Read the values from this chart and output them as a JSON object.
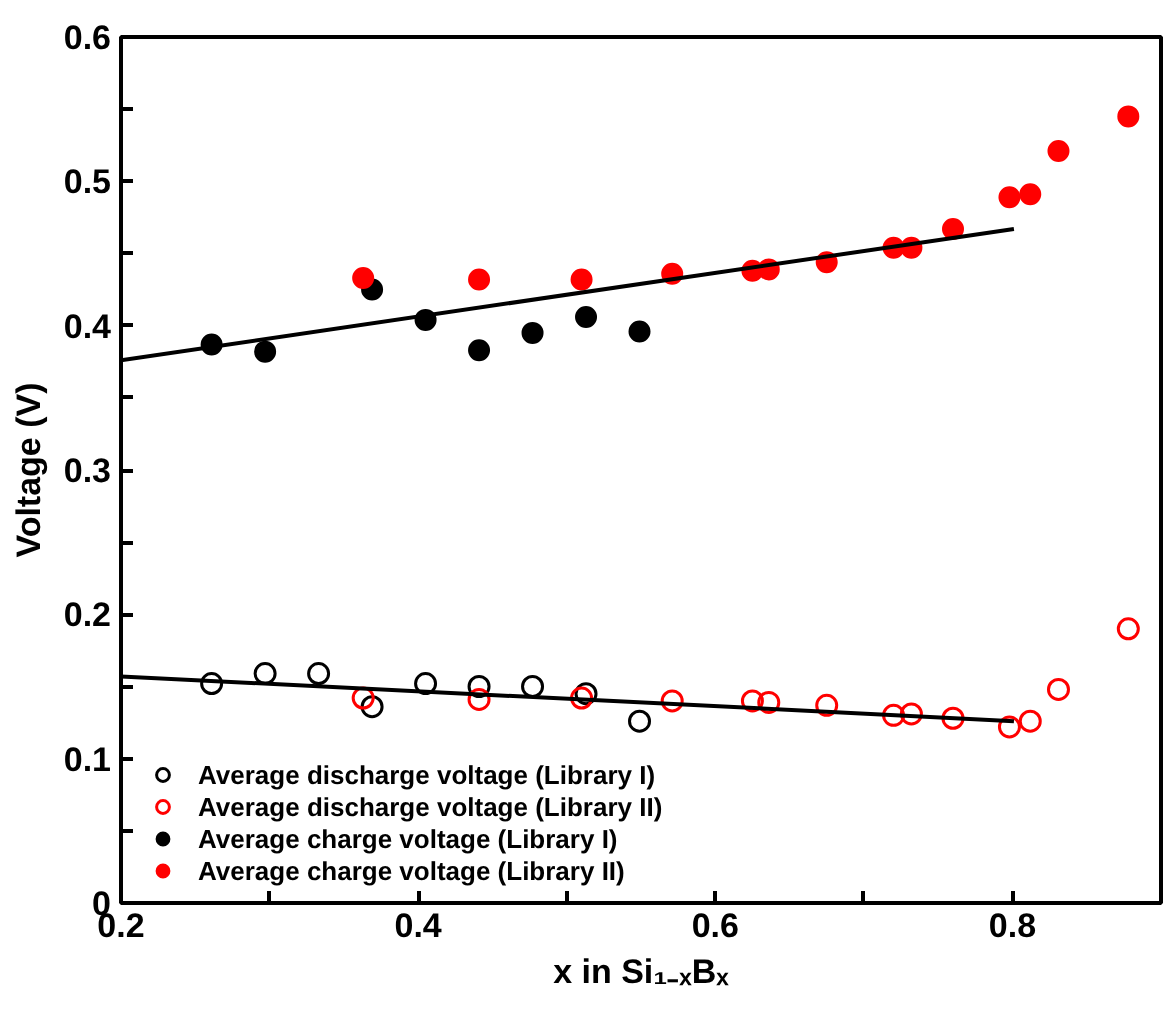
{
  "chart_data": {
    "type": "scatter",
    "xlabel": "x in Si₁₋ₓBₓ",
    "ylabel": "Voltage (V)",
    "xlim": [
      0.2,
      0.9
    ],
    "ylim": [
      0,
      0.6
    ],
    "xticks": [
      0.2,
      {
        "value": 0.3,
        "label": null
      },
      0.4,
      {
        "value": 0.5,
        "label": null
      },
      0.6,
      {
        "value": 0.7,
        "label": null
      },
      0.8
    ],
    "yticks": [
      0,
      {
        "value": 0.05,
        "label": null
      },
      0.1,
      {
        "value": 0.15,
        "label": null
      },
      0.2,
      {
        "value": 0.25,
        "label": null
      },
      0.3,
      {
        "value": 0.35,
        "label": null
      },
      0.4,
      {
        "value": 0.45,
        "label": null
      },
      0.5,
      {
        "value": 0.55,
        "label": null
      },
      0.6
    ],
    "grid": false,
    "legend": "bottom left",
    "series": [
      {
        "name": "Average discharge voltage (Library I)",
        "color": "#000000",
        "marker": "circle_open",
        "x": [
          0.261,
          0.297,
          0.333,
          0.369,
          0.405,
          0.441,
          0.477,
          0.513,
          0.549
        ],
        "values": [
          0.152,
          0.159,
          0.159,
          0.136,
          0.152,
          0.15,
          0.15,
          0.145,
          0.126
        ]
      },
      {
        "name": "Average discharge voltage (Library II)",
        "color": "#ff0000",
        "marker": "circle_open",
        "x": [
          0.363,
          0.441,
          0.51,
          0.571,
          0.625,
          0.636,
          0.675,
          0.72,
          0.732,
          0.76,
          0.798,
          0.812,
          0.831,
          0.878
        ],
        "values": [
          0.142,
          0.141,
          0.142,
          0.14,
          0.14,
          0.139,
          0.137,
          0.13,
          0.131,
          0.128,
          0.122,
          0.126,
          0.148,
          0.19
        ]
      },
      {
        "name": "Average charge voltage (Library I)",
        "color": "#000000",
        "marker": "circle",
        "x": [
          0.261,
          0.297,
          0.369,
          0.405,
          0.441,
          0.477,
          0.513,
          0.549
        ],
        "values": [
          0.387,
          0.382,
          0.425,
          0.404,
          0.383,
          0.395,
          0.406,
          0.396
        ]
      },
      {
        "name": "Average charge voltage (Library II)",
        "color": "#ff0000",
        "marker": "circle",
        "x": [
          0.363,
          0.441,
          0.51,
          0.571,
          0.625,
          0.636,
          0.675,
          0.72,
          0.732,
          0.76,
          0.798,
          0.812,
          0.831,
          0.878
        ],
        "values": [
          0.433,
          0.432,
          0.432,
          0.436,
          0.438,
          0.439,
          0.444,
          0.454,
          0.454,
          0.467,
          0.489,
          0.491,
          0.521,
          0.545
        ]
      },
      {
        "type": "line",
        "color": "#000000",
        "x": [
          0.2,
          0.801
        ],
        "values": [
          0.376,
          0.467
        ]
      },
      {
        "type": "line",
        "color": "#000000",
        "x": [
          0.2,
          0.801
        ],
        "values": [
          0.157,
          0.126
        ]
      }
    ]
  }
}
